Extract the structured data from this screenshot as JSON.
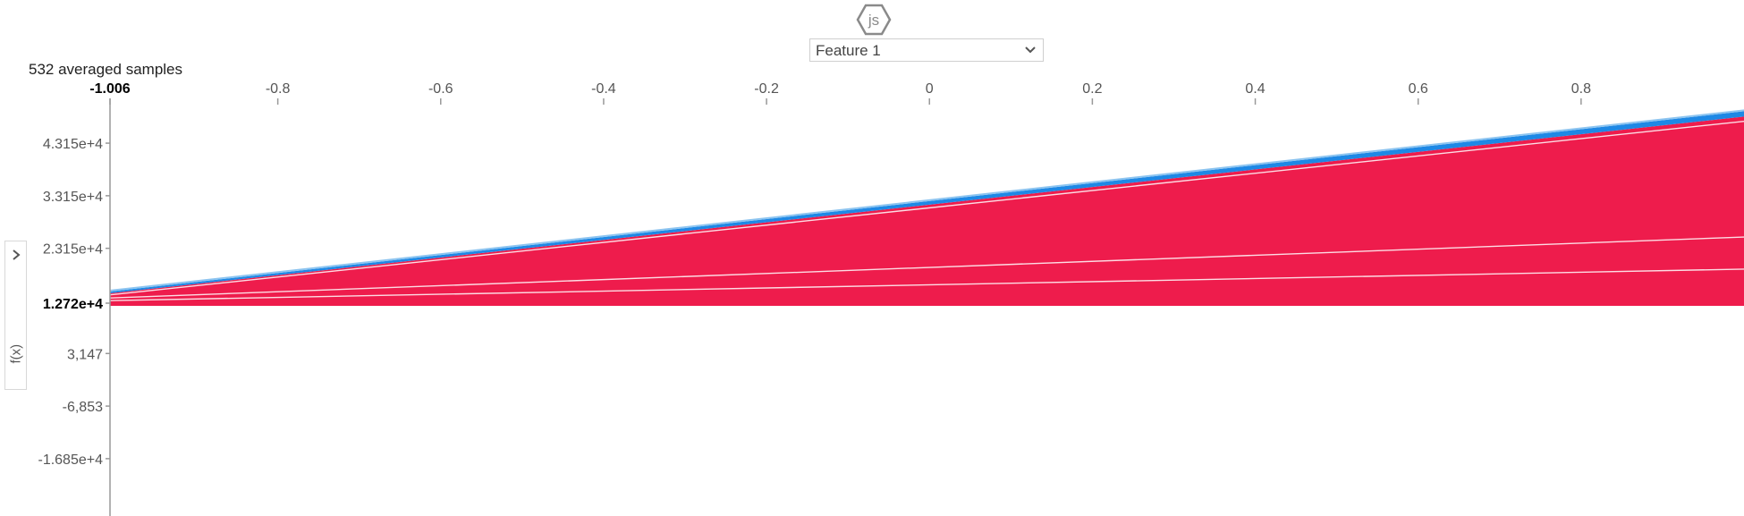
{
  "header": {
    "logo": "js-hexagon-logo",
    "feature_select": {
      "value": "Feature 1"
    }
  },
  "samples_label": "532 averaged samples",
  "side_toggle": {
    "label": "f(x)",
    "icon": "chevron-right-icon"
  },
  "chart_data": {
    "type": "area",
    "title": "",
    "x_ticks": [
      {
        "value": -1.006,
        "label": "-1.006",
        "bold": true
      },
      {
        "value": -0.8,
        "label": "-0.8"
      },
      {
        "value": -0.6,
        "label": "-0.6"
      },
      {
        "value": -0.4,
        "label": "-0.4"
      },
      {
        "value": -0.2,
        "label": "-0.2"
      },
      {
        "value": 0,
        "label": "0"
      },
      {
        "value": 0.2,
        "label": "0.2"
      },
      {
        "value": 0.4,
        "label": "0.4"
      },
      {
        "value": 0.6,
        "label": "0.6"
      },
      {
        "value": 0.8,
        "label": "0.8"
      }
    ],
    "y_ticks": [
      {
        "value": 43150,
        "label": "4.315e+4"
      },
      {
        "value": 33150,
        "label": "3.315e+4"
      },
      {
        "value": 23150,
        "label": "2.315e+4"
      },
      {
        "value": 12720,
        "label": "1.272e+4",
        "bold": true
      },
      {
        "value": 3147,
        "label": "3,147"
      },
      {
        "value": -6853,
        "label": "-6,853"
      },
      {
        "value": -16850,
        "label": "-1.685e+4"
      }
    ],
    "xlim": [
      -1.006,
      1.0
    ],
    "ylim": [
      -25000,
      48000
    ],
    "x": [
      -1.006,
      1.0
    ],
    "base_value": 12720,
    "positive_color": "#ee1c4c",
    "negative_color": "#1e88e5",
    "series": [
      {
        "values": [
          12200,
          12200
        ]
      },
      {
        "values": [
          13200,
          19200
        ]
      },
      {
        "values": [
          13700,
          25300
        ]
      },
      {
        "values": [
          14300,
          47300
        ]
      },
      {
        "values": [
          14600,
          48200
        ]
      }
    ]
  }
}
